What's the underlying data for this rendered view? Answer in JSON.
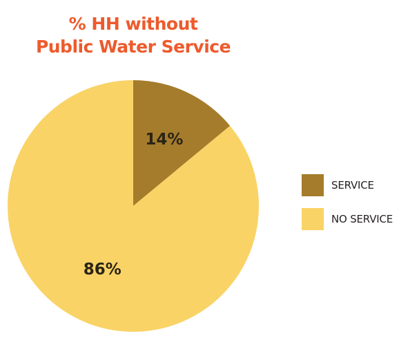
{
  "title_lines": [
    "% HH without",
    "Public Water Service"
  ],
  "colors": {
    "title": "#ee5a2c",
    "service": "#a57c2b",
    "no_service": "#f9d366",
    "label_text": "#2a2417"
  },
  "chart_data": {
    "type": "pie",
    "title": "% HH without Public Water Service",
    "legend_position": "right",
    "slices": [
      {
        "label": "SERVICE",
        "value": 14,
        "value_label": "14%",
        "color": "#a57c2b"
      },
      {
        "label": "NO SERVICE",
        "value": 86,
        "value_label": "86%",
        "color": "#f9d366"
      }
    ]
  }
}
